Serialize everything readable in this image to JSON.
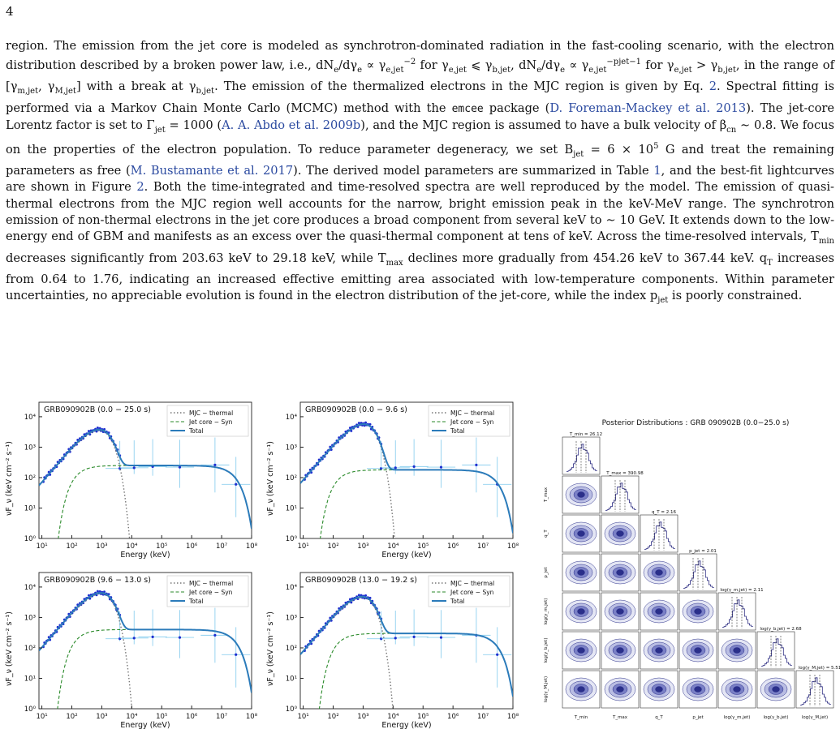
{
  "page_number": "4",
  "paragraph": [
    {
      "t": "region. The emission from the jet core is modeled as synchrotron-dominated radiation in the fast-cooling scenario, with the electron distribution described by a broken power law, i.e., "
    },
    {
      "t": "dN"
    },
    {
      "t": "e",
      "sub": 1
    },
    {
      "t": "/dγ"
    },
    {
      "t": "e",
      "sub": 1
    },
    {
      "t": " ∝ γ"
    },
    {
      "t": "e,jet",
      "sub": 1
    },
    {
      "t": "−2",
      "sup": 1
    },
    {
      "t": " for γ"
    },
    {
      "t": "e,jet",
      "sub": 1
    },
    {
      "t": " ⩽ γ"
    },
    {
      "t": "b,jet",
      "sub": 1
    },
    {
      "t": ", dN"
    },
    {
      "t": "e",
      "sub": 1
    },
    {
      "t": "/dγ"
    },
    {
      "t": "e",
      "sub": 1
    },
    {
      "t": " ∝ γ"
    },
    {
      "t": "e,jet",
      "sub": 1
    },
    {
      "t": "−p",
      "sup": 1
    },
    {
      "t": "jet",
      "sup": 1
    },
    {
      "t": "−1",
      "sup": 1
    },
    {
      "t": " for γ"
    },
    {
      "t": "e,jet",
      "sub": 1
    },
    {
      "t": " > γ"
    },
    {
      "t": "b,jet",
      "sub": 1
    },
    {
      "t": ", in the range of [γ"
    },
    {
      "t": "m,jet",
      "sub": 1
    },
    {
      "t": ", γ"
    },
    {
      "t": "M,jet",
      "sub": 1
    },
    {
      "t": "] with a break at γ"
    },
    {
      "t": "b,jet",
      "sub": 1
    },
    {
      "t": ". The emission of the thermalized electrons in the MJC region is given by Eq. "
    },
    {
      "t": "2",
      "cite": 1
    },
    {
      "t": ". Spectral fitting is performed via a Markov Chain Monte Carlo (MCMC) method with the "
    },
    {
      "t": "emcee",
      "tt": 1
    },
    {
      "t": " package ("
    },
    {
      "t": "D. Foreman-Mackey et al. 2013",
      "cite": 1
    },
    {
      "t": "). The jet-core Lorentz factor is set to Γ"
    },
    {
      "t": "jet",
      "sub": 1
    },
    {
      "t": " = 1000 ("
    },
    {
      "t": "A. A. Abdo et al. 2009b",
      "cite": 1
    },
    {
      "t": "), and the MJC region is assumed to have a bulk velocity of β"
    },
    {
      "t": "cn",
      "sub": 1
    },
    {
      "t": " ∼ 0.8. We focus on the properties of the electron population. To reduce parameter degeneracy, we set B"
    },
    {
      "t": "jet",
      "sub": 1
    },
    {
      "t": " = 6 × 10"
    },
    {
      "t": "5",
      "sup": 1
    },
    {
      "t": " G and treat the remaining parameters as free ("
    },
    {
      "t": "M. Bustamante et al. 2017",
      "cite": 1
    },
    {
      "t": "). The derived model parameters are summarized in Table "
    },
    {
      "t": "1",
      "cite": 1
    },
    {
      "t": ", and the best-fit lightcurves are shown in Figure "
    },
    {
      "t": "2",
      "cite": 1
    },
    {
      "t": ". Both the time-integrated and time-resolved spectra are well reproduced by the model. The emission of quasi-thermal electrons from the MJC region well accounts for the narrow, bright emission peak in the keV-MeV range. The synchrotron emission of non-thermal electrons in the jet core produces a broad component from several keV to ∼ 10 GeV. It extends down to the low-energy end of GBM and manifests as an excess over the quasi-thermal component at tens of keV. Across the time-resolved intervals, T"
    },
    {
      "t": "min",
      "sub": 1
    },
    {
      "t": " decreases significantly from 203.63 keV to 29.18 keV, while T"
    },
    {
      "t": "max",
      "sub": 1
    },
    {
      "t": " declines more gradually from 454.26 keV to 367.44 keV. q"
    },
    {
      "t": "T",
      "sub": 1
    },
    {
      "t": " increases from 0.64 to 1.76, indicating an increased effective emitting area associated with low-temperature components. Within parameter uncertainties, no appreciable evolution is found in the electron distribution of the jet-core, while the index p"
    },
    {
      "t": "jet",
      "sub": 1
    },
    {
      "t": " is poorly constrained."
    }
  ],
  "colors": {
    "thermal": "#777777",
    "syn": "#2a8a2a",
    "total": "#2b7bba",
    "data": "#1f2fd0",
    "err": "#8fd0ef",
    "corner": "#2a2a80"
  },
  "spectral_common": {
    "xlabel": "Energy (keV)",
    "ylabel": "νF_ν (keV cm⁻² s⁻¹)",
    "xticks": [
      "10¹",
      "10²",
      "10³",
      "10⁴",
      "10⁵",
      "10⁶",
      "10⁷",
      "10⁸"
    ],
    "yticks": [
      "10⁰",
      "10¹",
      "10²",
      "10³",
      "10⁴"
    ],
    "legend": [
      "MJC − thermal",
      "Jet core − Syn",
      "Total"
    ]
  },
  "chart_data": [
    {
      "type": "line",
      "title": "GRB090902B (0.0 − 25.0 s)",
      "xscale": "log",
      "yscale": "log",
      "xlim": [
        8,
        100000000
      ],
      "ylim": [
        1,
        30000
      ],
      "peak": [
        700,
        3500
      ],
      "plateau": 250
    },
    {
      "type": "line",
      "title": "GRB090902B (0.0 − 9.6 s)",
      "xscale": "log",
      "yscale": "log",
      "xlim": [
        8,
        100000000
      ],
      "ylim": [
        1,
        30000
      ],
      "peak": [
        900,
        5500
      ],
      "plateau": 180
    },
    {
      "type": "line",
      "title": "GRB090902B (9.6 − 13.0 s)",
      "xscale": "log",
      "yscale": "log",
      "xlim": [
        8,
        100000000
      ],
      "ylim": [
        1,
        30000
      ],
      "peak": [
        800,
        6000
      ],
      "plateau": 400
    },
    {
      "type": "line",
      "title": "GRB090902B (13.0 − 19.2 s)",
      "xscale": "log",
      "yscale": "log",
      "xlim": [
        8,
        100000000
      ],
      "ylim": [
        1,
        30000
      ],
      "peak": [
        800,
        4500
      ],
      "plateau": 300
    },
    {
      "type": "heatmap",
      "title": "Posterior Distributions : GRB 090902B (0.0−25.0 s)",
      "params": [
        "T_min",
        "T_max",
        "q_T",
        "p_jet",
        "log(γ_m,jet)",
        "log(γ_b,jet)",
        "log(γ_M,jet)"
      ],
      "param_labels": [
        "T_min",
        "T_max",
        "q_T",
        "p_jet",
        "log(γ_m,jet)",
        "log(γ_b,jet)",
        "log(γ_M,jet)"
      ],
      "estimates": [
        "T_min = 26.12",
        "T_max = 390.98",
        "q_T = 2.16",
        "p_jet = 2.01",
        "log(γ_m,jet) = 2.11",
        "log(γ_b,jet) = 2.68",
        "log(γ_M,jet) = 5.51"
      ]
    }
  ]
}
